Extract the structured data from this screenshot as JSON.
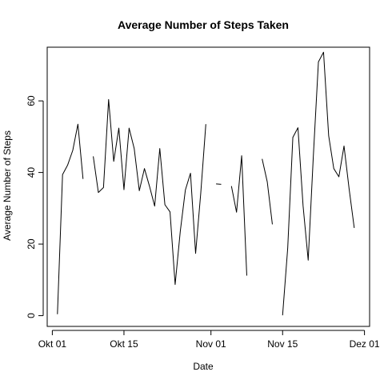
{
  "chart_data": {
    "type": "line",
    "title": "Average Number of Steps Taken",
    "xlabel": "Date",
    "ylabel": "Average Number of Steps",
    "xlim": [
      "2012-09-30",
      "2012-12-02"
    ],
    "ylim": [
      -3,
      75
    ],
    "grid": false,
    "legend": "none",
    "x_ticks": [
      {
        "value": "2012-10-01",
        "label": "Okt 01"
      },
      {
        "value": "2012-10-15",
        "label": "Okt 15"
      },
      {
        "value": "2012-11-01",
        "label": "Nov 01"
      },
      {
        "value": "2012-11-15",
        "label": "Nov 15"
      },
      {
        "value": "2012-12-01",
        "label": "Dez 01"
      }
    ],
    "y_ticks": [
      0,
      20,
      40,
      60
    ],
    "series": [
      {
        "color": "#000000",
        "points": [
          {
            "x": "2012-10-01",
            "y": null
          },
          {
            "x": "2012-10-02",
            "y": 0.4
          },
          {
            "x": "2012-10-03",
            "y": 39.4
          },
          {
            "x": "2012-10-04",
            "y": 42.1
          },
          {
            "x": "2012-10-05",
            "y": 46.2
          },
          {
            "x": "2012-10-06",
            "y": 53.5
          },
          {
            "x": "2012-10-07",
            "y": 38.2
          },
          {
            "x": "2012-10-08",
            "y": null
          },
          {
            "x": "2012-10-09",
            "y": 44.5
          },
          {
            "x": "2012-10-10",
            "y": 34.4
          },
          {
            "x": "2012-10-11",
            "y": 35.8
          },
          {
            "x": "2012-10-12",
            "y": 60.4
          },
          {
            "x": "2012-10-13",
            "y": 43.1
          },
          {
            "x": "2012-10-14",
            "y": 52.4
          },
          {
            "x": "2012-10-15",
            "y": 35.2
          },
          {
            "x": "2012-10-16",
            "y": 52.4
          },
          {
            "x": "2012-10-17",
            "y": 46.7
          },
          {
            "x": "2012-10-18",
            "y": 34.9
          },
          {
            "x": "2012-10-19",
            "y": 41.1
          },
          {
            "x": "2012-10-20",
            "y": 36.1
          },
          {
            "x": "2012-10-21",
            "y": 30.6
          },
          {
            "x": "2012-10-22",
            "y": 46.7
          },
          {
            "x": "2012-10-23",
            "y": 31.0
          },
          {
            "x": "2012-10-24",
            "y": 29.0
          },
          {
            "x": "2012-10-25",
            "y": 8.7
          },
          {
            "x": "2012-10-26",
            "y": 23.5
          },
          {
            "x": "2012-10-27",
            "y": 35.1
          },
          {
            "x": "2012-10-28",
            "y": 39.8
          },
          {
            "x": "2012-10-29",
            "y": 17.4
          },
          {
            "x": "2012-10-30",
            "y": 34.1
          },
          {
            "x": "2012-10-31",
            "y": 53.5
          },
          {
            "x": "2012-11-01",
            "y": null
          },
          {
            "x": "2012-11-02",
            "y": 36.8
          },
          {
            "x": "2012-11-03",
            "y": 36.7
          },
          {
            "x": "2012-11-04",
            "y": null
          },
          {
            "x": "2012-11-05",
            "y": 36.2
          },
          {
            "x": "2012-11-06",
            "y": 28.9
          },
          {
            "x": "2012-11-07",
            "y": 44.7
          },
          {
            "x": "2012-11-08",
            "y": 11.2
          },
          {
            "x": "2012-11-09",
            "y": null
          },
          {
            "x": "2012-11-10",
            "y": null
          },
          {
            "x": "2012-11-11",
            "y": 43.8
          },
          {
            "x": "2012-11-12",
            "y": 37.4
          },
          {
            "x": "2012-11-13",
            "y": 25.5
          },
          {
            "x": "2012-11-14",
            "y": null
          },
          {
            "x": "2012-11-15",
            "y": 0.1
          },
          {
            "x": "2012-11-16",
            "y": 18.9
          },
          {
            "x": "2012-11-17",
            "y": 49.8
          },
          {
            "x": "2012-11-18",
            "y": 52.5
          },
          {
            "x": "2012-11-19",
            "y": 30.7
          },
          {
            "x": "2012-11-20",
            "y": 15.5
          },
          {
            "x": "2012-11-21",
            "y": 44.4
          },
          {
            "x": "2012-11-22",
            "y": 70.9
          },
          {
            "x": "2012-11-23",
            "y": 73.6
          },
          {
            "x": "2012-11-24",
            "y": 50.3
          },
          {
            "x": "2012-11-25",
            "y": 41.1
          },
          {
            "x": "2012-11-26",
            "y": 38.8
          },
          {
            "x": "2012-11-27",
            "y": 47.4
          },
          {
            "x": "2012-11-28",
            "y": 35.4
          },
          {
            "x": "2012-11-29",
            "y": 24.5
          },
          {
            "x": "2012-11-30",
            "y": null
          }
        ]
      }
    ]
  }
}
